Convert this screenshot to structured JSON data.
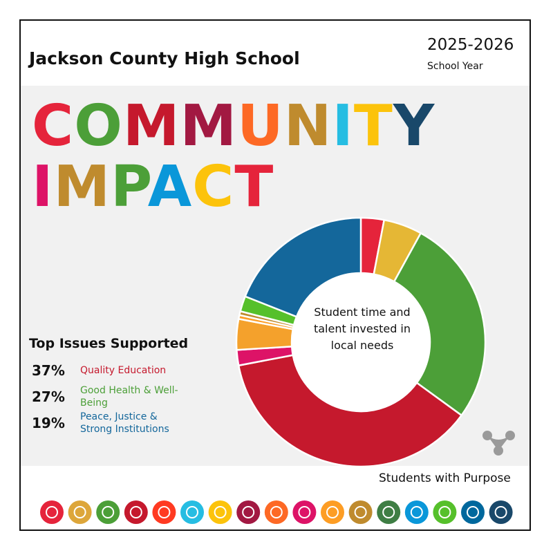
{
  "header": {
    "school": "Jackson County High School",
    "year": "2025-2026",
    "year_label": "School Year"
  },
  "title": {
    "lines": [
      "COMMUNITY",
      "IMPACT"
    ],
    "letter_colors": [
      [
        "#e5243b",
        "#4c9f38",
        "#c5192d",
        "#a21942",
        "#fd6925",
        "#bf8b2e",
        "#26bde2",
        "#fcc30b",
        "#19486a"
      ],
      [
        "#dd1367",
        "#bf8b2e",
        "#4c9f38",
        "#0a97d9",
        "#fcc30b",
        "#e5243b"
      ]
    ]
  },
  "chart_data": {
    "type": "donut",
    "center_text": "Student time and talent invested in local needs",
    "values": [
      3,
      5,
      27,
      37,
      2,
      4,
      0.5,
      0.5,
      2,
      19
    ],
    "colors": [
      "#e5243b",
      "#e5b735",
      "#4c9f38",
      "#c5192d",
      "#dd1367",
      "#f4a12c",
      "#fd9d24",
      "#bf8b2e",
      "#56c02b",
      "#14679b"
    ]
  },
  "top_issues": {
    "heading": "Top Issues Supported",
    "items": [
      {
        "percent": "37%",
        "label": "Quality Education",
        "color": "#c5192d"
      },
      {
        "percent": "27%",
        "label": "Good Health & Well-Being",
        "color": "#4c9f38"
      },
      {
        "percent": "19%",
        "label": "Peace, Justice & Strong Institutions",
        "color": "#14679b"
      }
    ]
  },
  "footer": {
    "tagline": "Students with Purpose"
  }
}
